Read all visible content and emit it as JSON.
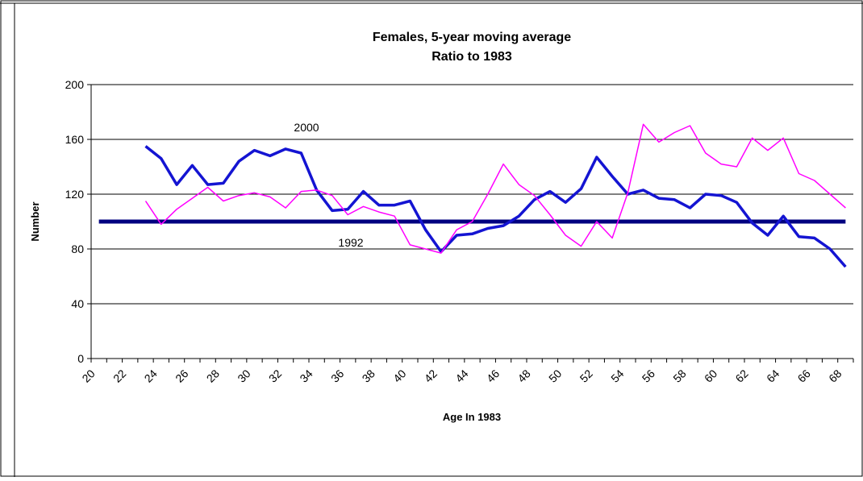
{
  "chart_data": {
    "type": "line",
    "title": "Females, 5-year moving average",
    "subtitle": "Ratio to 1983",
    "x_label": "Age In 1983",
    "y_label": "Number",
    "categories": [
      20,
      null,
      22,
      null,
      24,
      null,
      26,
      null,
      28,
      null,
      30,
      null,
      32,
      null,
      34,
      null,
      36,
      null,
      38,
      null,
      40,
      null,
      42,
      null,
      44,
      null,
      46,
      null,
      48,
      null,
      50,
      null,
      52,
      null,
      54,
      null,
      56,
      null,
      58,
      null,
      60,
      null,
      62,
      null,
      64,
      null,
      66,
      null,
      68
    ],
    "series": [
      {
        "name": "2000",
        "color": "#1414d2",
        "values": [
          null,
          null,
          null,
          155,
          146,
          127,
          141,
          127,
          128,
          144,
          152,
          148,
          153,
          150,
          123,
          108,
          109,
          122,
          112,
          112,
          115,
          94,
          78,
          90,
          91,
          95,
          97,
          104,
          116,
          122,
          114,
          124,
          147,
          133,
          120,
          123,
          117,
          116,
          110,
          120,
          119,
          114,
          99,
          90,
          104,
          89,
          88,
          80,
          67
        ]
      },
      {
        "name": "1992",
        "color": "#ff00ff",
        "values": [
          null,
          null,
          null,
          115,
          98,
          109,
          117,
          125,
          115,
          119,
          121,
          118,
          110,
          122,
          123,
          119,
          105,
          111,
          107,
          104,
          83,
          80,
          77,
          94,
          100,
          120,
          142,
          127,
          119,
          105,
          90,
          82,
          100,
          88,
          121,
          171,
          158,
          165,
          170,
          150,
          142,
          140,
          161,
          152,
          161,
          135,
          130,
          120,
          110
        ]
      }
    ],
    "reference_line": 100,
    "reference_color": "#000080",
    "ylim": [
      0,
      200
    ],
    "yticks": [
      0,
      40,
      80,
      120,
      160,
      200
    ],
    "grid": true
  }
}
